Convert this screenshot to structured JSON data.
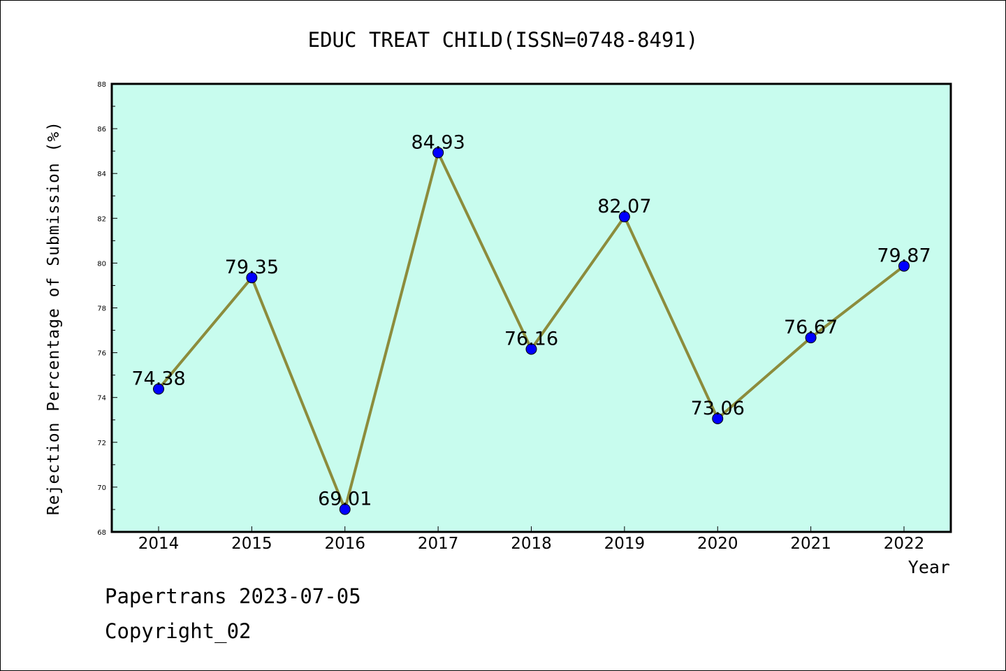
{
  "chart_data": {
    "type": "line",
    "title": "EDUC TREAT CHILD(ISSN=0748-8491)",
    "xlabel": "Year",
    "ylabel": "Rejection Percentage of Submission (%)",
    "ylim": [
      68,
      88
    ],
    "yticks": [
      68,
      70,
      72,
      74,
      76,
      78,
      80,
      82,
      84,
      86,
      88
    ],
    "x": [
      "2014",
      "2015",
      "2016",
      "2017",
      "2018",
      "2019",
      "2020",
      "2021",
      "2022"
    ],
    "series": [
      {
        "values": [
          74.38,
          79.35,
          69.01,
          84.93,
          76.16,
          82.07,
          73.06,
          76.67,
          79.87
        ],
        "data_labels": [
          "74.38",
          "79.35",
          "69.01",
          "84.93",
          "76.16",
          "82.07",
          "73.06",
          "76.67",
          "79.87"
        ]
      }
    ],
    "grid": false,
    "colors": {
      "plot_background": "#c8fcee",
      "line": "#8c8c3c",
      "marker": "#0000ff"
    }
  },
  "footer": {
    "line1": "Papertrans 2023-07-05",
    "line2": "Copyright_02"
  }
}
